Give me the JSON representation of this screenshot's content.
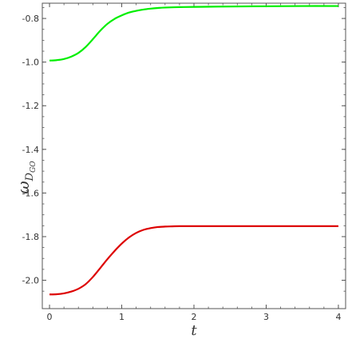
{
  "chart_data": {
    "type": "line",
    "title": "",
    "xlabel": "t",
    "ylabel": {
      "base": "ω",
      "sub": "D",
      "subsub": "GO"
    },
    "xlim": [
      -0.1,
      4.1
    ],
    "ylim": [
      -2.13,
      -0.73
    ],
    "grid": false,
    "x_ticks": [
      0,
      1,
      2,
      3,
      4
    ],
    "x_tick_labels": [
      "0",
      "1",
      "2",
      "3",
      "4"
    ],
    "y_ticks": [
      -2.0,
      -1.8,
      -1.6,
      -1.4,
      -1.2,
      -1.0,
      -0.8
    ],
    "y_tick_labels": [
      "-2.0",
      "-1.8",
      "-1.6",
      "-1.4",
      "-1.2",
      "-1.0",
      "-0.8"
    ],
    "series": [
      {
        "color": "#00ee00",
        "x": [
          0,
          0.1,
          0.2,
          0.3,
          0.4,
          0.5,
          0.6,
          0.7,
          0.8,
          0.9,
          1.0,
          1.1,
          1.2,
          1.3,
          1.4,
          1.5,
          1.6,
          1.8,
          2.0,
          2.5,
          3.0,
          3.5,
          4.0
        ],
        "values": [
          -0.993,
          -0.991,
          -0.986,
          -0.975,
          -0.958,
          -0.931,
          -0.895,
          -0.857,
          -0.825,
          -0.802,
          -0.786,
          -0.773,
          -0.765,
          -0.759,
          -0.755,
          -0.752,
          -0.75,
          -0.748,
          -0.747,
          -0.745,
          -0.744,
          -0.743,
          -0.743
        ]
      },
      {
        "color": "#dd0000",
        "x": [
          0,
          0.1,
          0.2,
          0.3,
          0.4,
          0.5,
          0.6,
          0.7,
          0.8,
          0.9,
          1.0,
          1.1,
          1.2,
          1.3,
          1.4,
          1.5,
          1.6,
          1.7,
          1.8,
          2.0,
          2.5,
          3.0,
          3.5,
          4.0
        ],
        "values": [
          -2.065,
          -2.064,
          -2.06,
          -2.052,
          -2.039,
          -2.018,
          -1.985,
          -1.945,
          -1.904,
          -1.866,
          -1.832,
          -1.804,
          -1.783,
          -1.769,
          -1.761,
          -1.756,
          -1.754,
          -1.753,
          -1.752,
          -1.752,
          -1.752,
          -1.752,
          -1.752,
          -1.752
        ]
      }
    ]
  }
}
